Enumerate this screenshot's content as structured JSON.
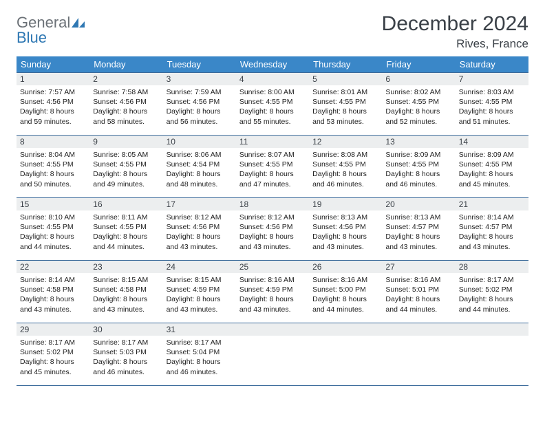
{
  "logo": {
    "word1": "General",
    "word2": "Blue"
  },
  "title": "December 2024",
  "location": "Rives, France",
  "colors": {
    "header_bg": "#3a87c8",
    "header_text": "#ffffff",
    "daynum_bg": "#eceeef",
    "border": "#3a6a9a",
    "title_color": "#3a4047",
    "logo_gray": "#6b7177",
    "logo_blue": "#2f78b3"
  },
  "weekdays": [
    "Sunday",
    "Monday",
    "Tuesday",
    "Wednesday",
    "Thursday",
    "Friday",
    "Saturday"
  ],
  "days": [
    {
      "n": 1,
      "sr": "7:57 AM",
      "ss": "4:56 PM",
      "dl": "8 hours and 59 minutes."
    },
    {
      "n": 2,
      "sr": "7:58 AM",
      "ss": "4:56 PM",
      "dl": "8 hours and 58 minutes."
    },
    {
      "n": 3,
      "sr": "7:59 AM",
      "ss": "4:56 PM",
      "dl": "8 hours and 56 minutes."
    },
    {
      "n": 4,
      "sr": "8:00 AM",
      "ss": "4:55 PM",
      "dl": "8 hours and 55 minutes."
    },
    {
      "n": 5,
      "sr": "8:01 AM",
      "ss": "4:55 PM",
      "dl": "8 hours and 53 minutes."
    },
    {
      "n": 6,
      "sr": "8:02 AM",
      "ss": "4:55 PM",
      "dl": "8 hours and 52 minutes."
    },
    {
      "n": 7,
      "sr": "8:03 AM",
      "ss": "4:55 PM",
      "dl": "8 hours and 51 minutes."
    },
    {
      "n": 8,
      "sr": "8:04 AM",
      "ss": "4:55 PM",
      "dl": "8 hours and 50 minutes."
    },
    {
      "n": 9,
      "sr": "8:05 AM",
      "ss": "4:55 PM",
      "dl": "8 hours and 49 minutes."
    },
    {
      "n": 10,
      "sr": "8:06 AM",
      "ss": "4:54 PM",
      "dl": "8 hours and 48 minutes."
    },
    {
      "n": 11,
      "sr": "8:07 AM",
      "ss": "4:55 PM",
      "dl": "8 hours and 47 minutes."
    },
    {
      "n": 12,
      "sr": "8:08 AM",
      "ss": "4:55 PM",
      "dl": "8 hours and 46 minutes."
    },
    {
      "n": 13,
      "sr": "8:09 AM",
      "ss": "4:55 PM",
      "dl": "8 hours and 46 minutes."
    },
    {
      "n": 14,
      "sr": "8:09 AM",
      "ss": "4:55 PM",
      "dl": "8 hours and 45 minutes."
    },
    {
      "n": 15,
      "sr": "8:10 AM",
      "ss": "4:55 PM",
      "dl": "8 hours and 44 minutes."
    },
    {
      "n": 16,
      "sr": "8:11 AM",
      "ss": "4:55 PM",
      "dl": "8 hours and 44 minutes."
    },
    {
      "n": 17,
      "sr": "8:12 AM",
      "ss": "4:56 PM",
      "dl": "8 hours and 43 minutes."
    },
    {
      "n": 18,
      "sr": "8:12 AM",
      "ss": "4:56 PM",
      "dl": "8 hours and 43 minutes."
    },
    {
      "n": 19,
      "sr": "8:13 AM",
      "ss": "4:56 PM",
      "dl": "8 hours and 43 minutes."
    },
    {
      "n": 20,
      "sr": "8:13 AM",
      "ss": "4:57 PM",
      "dl": "8 hours and 43 minutes."
    },
    {
      "n": 21,
      "sr": "8:14 AM",
      "ss": "4:57 PM",
      "dl": "8 hours and 43 minutes."
    },
    {
      "n": 22,
      "sr": "8:14 AM",
      "ss": "4:58 PM",
      "dl": "8 hours and 43 minutes."
    },
    {
      "n": 23,
      "sr": "8:15 AM",
      "ss": "4:58 PM",
      "dl": "8 hours and 43 minutes."
    },
    {
      "n": 24,
      "sr": "8:15 AM",
      "ss": "4:59 PM",
      "dl": "8 hours and 43 minutes."
    },
    {
      "n": 25,
      "sr": "8:16 AM",
      "ss": "4:59 PM",
      "dl": "8 hours and 43 minutes."
    },
    {
      "n": 26,
      "sr": "8:16 AM",
      "ss": "5:00 PM",
      "dl": "8 hours and 44 minutes."
    },
    {
      "n": 27,
      "sr": "8:16 AM",
      "ss": "5:01 PM",
      "dl": "8 hours and 44 minutes."
    },
    {
      "n": 28,
      "sr": "8:17 AM",
      "ss": "5:02 PM",
      "dl": "8 hours and 44 minutes."
    },
    {
      "n": 29,
      "sr": "8:17 AM",
      "ss": "5:02 PM",
      "dl": "8 hours and 45 minutes."
    },
    {
      "n": 30,
      "sr": "8:17 AM",
      "ss": "5:03 PM",
      "dl": "8 hours and 46 minutes."
    },
    {
      "n": 31,
      "sr": "8:17 AM",
      "ss": "5:04 PM",
      "dl": "8 hours and 46 minutes."
    }
  ],
  "labels": {
    "sunrise": "Sunrise:",
    "sunset": "Sunset:",
    "daylight": "Daylight:"
  },
  "layout": {
    "cols": 7,
    "rows": 5,
    "start_weekday": 0
  }
}
